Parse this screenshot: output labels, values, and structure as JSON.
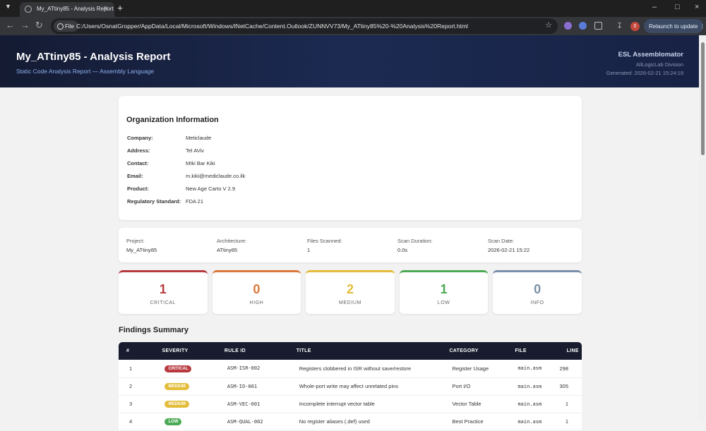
{
  "browser": {
    "tab_title": "My_ATtiny85 - Analysis Report",
    "scheme_chip": "File",
    "url": "C:/Users/OsnatGropper/AppData/Local/Microsoft/Windows/INetCache/Content.Outlook/ZUNNVV73/My_ATtiny85%20-%20Analysis%20Report.html",
    "download_badge": "0",
    "relaunch": "Relaunch to update"
  },
  "header": {
    "title": "My_ATtiny85 - Analysis Report",
    "subtitle": "Static Code Analysis Report — Assembly Language",
    "brand": "ESL Assemblomator",
    "division": "AllLogicLab Division",
    "generated": "Generated: 2026-02-21 15:24:19"
  },
  "organization": {
    "title": "Organization Information",
    "rows": [
      [
        "Company:",
        "Meticlaude"
      ],
      [
        "Address:",
        "Tel AViv"
      ],
      [
        "Contact:",
        "MIki Bar Kiki"
      ],
      [
        "Email:",
        "m.kiki@mediclaude.co.ilk"
      ],
      [
        "Product:",
        "New Age Carto V 2.9"
      ],
      [
        "Regulatory Standard:",
        "FDA 21"
      ]
    ]
  },
  "project": [
    {
      "label": "Project:",
      "value": "My_ATtiny85"
    },
    {
      "label": "Architecture:",
      "value": "ATtiny85"
    },
    {
      "label": "Files Scanned:",
      "value": "1"
    },
    {
      "label": "Scan Duration:",
      "value": "0.0s"
    },
    {
      "label": "Scan Date:",
      "value": "2026-02-21 15:22"
    }
  ],
  "severity": [
    {
      "count": 1,
      "label": "CRITICAL",
      "color": "#b83a3f"
    },
    {
      "count": 0,
      "label": "HIGH",
      "color": "#d9783a"
    },
    {
      "count": 2,
      "label": "MEDIUM",
      "color": "#e3bd3a"
    },
    {
      "count": 1,
      "label": "LOW",
      "color": "#4caa55"
    },
    {
      "count": 0,
      "label": "INFO",
      "color": "#7b8fa8"
    }
  ],
  "findings": {
    "title": "Findings Summary",
    "columns": [
      "#",
      "SEVERITY",
      "RULE ID",
      "TITLE",
      "CATEGORY",
      "FILE",
      "LINE"
    ],
    "rows": [
      [
        1,
        "CRITICAL",
        "ASM-ISR-002",
        "Registers clobbered in ISR without save/restore",
        "Register Usage",
        "main.asm",
        298
      ],
      [
        2,
        "MEDIUM",
        "ASM-IO-001",
        "Whole-port write may affect unrelated pins",
        "Port I/O",
        "main.asm",
        305
      ],
      [
        3,
        "MEDIUM",
        "ASM-VEC-001",
        "Incomplete interrupt vector table",
        "Vector Table",
        "main.asm",
        1
      ],
      [
        4,
        "LOW",
        "ASM-QUAL-002",
        "No register aliases (.def) used",
        "Best Practice",
        "main.asm",
        1
      ]
    ]
  }
}
